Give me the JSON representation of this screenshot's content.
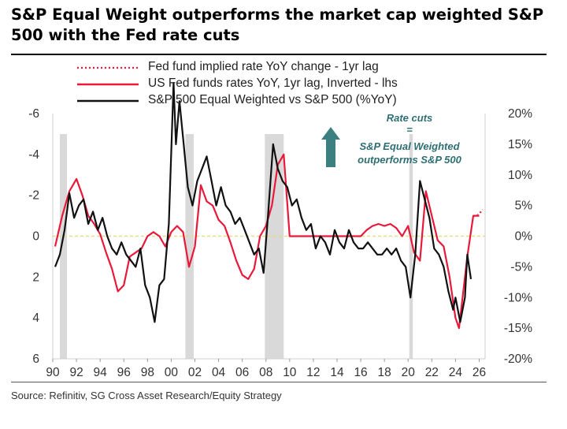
{
  "title": "S&P Equal Weight outperforms the market cap weighted S&P 500 with the Fed rate cuts",
  "source": "Source: Refinitiv, SG Cross Asset Research/Equity Strategy",
  "colors": {
    "red": "#e8193a",
    "black": "#111111",
    "recession": "#d9d9d9",
    "arrow": "#3c7f80",
    "annotation": "#2e6f73",
    "zero": "#e8d98a"
  },
  "chart_data": {
    "type": "line",
    "legend": [
      {
        "label": "Fed fund implied rate YoY change - 1yr lag",
        "style": "dotted",
        "color": "#e8193a"
      },
      {
        "label": "US Fed funds rates YoY, 1yr lag, Inverted - lhs",
        "style": "solid",
        "color": "#e8193a"
      },
      {
        "label": "S&P 500 Equal Weighted vs S&P 500 (%YoY)",
        "style": "solid",
        "color": "#111111"
      }
    ],
    "annotation": {
      "line1": "Rate cuts",
      "line2": "=",
      "line3": "S&P Equal Weighted",
      "line4": "outperforms S&P 500"
    },
    "x_ticks": [
      "90",
      "92",
      "94",
      "96",
      "98",
      "00",
      "02",
      "04",
      "06",
      "08",
      "10",
      "12",
      "14",
      "16",
      "18",
      "20",
      "22",
      "24",
      "26"
    ],
    "xlim": [
      1990,
      2026.5
    ],
    "left_axis": {
      "ticks": [
        "-6",
        "-4",
        "-2",
        "0",
        "2",
        "4",
        "6"
      ],
      "ylim": [
        -6,
        6
      ]
    },
    "right_axis": {
      "ticks": [
        "20%",
        "15%",
        "10%",
        "5%",
        "0%",
        "-5%",
        "-10%",
        "-15%",
        "-20%"
      ],
      "ylim": [
        -20,
        20
      ]
    },
    "recessions": [
      [
        1990.6,
        1991.2
      ],
      [
        2001.2,
        2001.9
      ],
      [
        2007.9,
        2009.5
      ],
      [
        2020.1,
        2020.4
      ]
    ],
    "series": [
      {
        "name": "S&P 500 Equal Weighted vs S&P 500 (%YoY)",
        "axis": "right",
        "x": [
          1990.2,
          1990.6,
          1991.0,
          1991.4,
          1991.8,
          1992.2,
          1992.6,
          1993.0,
          1993.4,
          1993.8,
          1994.2,
          1994.6,
          1995.0,
          1995.4,
          1995.8,
          1996.2,
          1996.6,
          1997.0,
          1997.4,
          1997.8,
          1998.2,
          1998.6,
          1999.0,
          1999.4,
          1999.8,
          2000.2,
          2000.4,
          2000.7,
          2001.0,
          2001.4,
          2001.8,
          2002.2,
          2002.6,
          2003.0,
          2003.4,
          2003.8,
          2004.2,
          2004.6,
          2005.0,
          2005.4,
          2005.8,
          2006.2,
          2006.6,
          2007.0,
          2007.4,
          2007.8,
          2008.2,
          2008.6,
          2009.0,
          2009.4,
          2009.8,
          2010.2,
          2010.6,
          2011.0,
          2011.4,
          2011.8,
          2012.2,
          2012.6,
          2013.0,
          2013.4,
          2013.8,
          2014.2,
          2014.6,
          2015.0,
          2015.4,
          2015.8,
          2016.2,
          2016.6,
          2017.0,
          2017.4,
          2017.8,
          2018.2,
          2018.6,
          2019.0,
          2019.4,
          2019.8,
          2020.2,
          2020.6,
          2021.0,
          2021.4,
          2021.8,
          2022.2,
          2022.6,
          2023.0,
          2023.4,
          2023.8,
          2024.0,
          2024.4,
          2024.8,
          2025.0,
          2025.3
        ],
        "values": [
          -5,
          -3,
          1,
          7,
          3,
          5,
          6,
          2,
          4,
          1,
          3,
          0,
          -2,
          -3,
          -1,
          -3,
          -4,
          -5,
          -2,
          -8,
          -10,
          -14,
          -8,
          -7,
          2,
          25,
          15,
          22,
          16,
          8,
          5,
          9,
          11,
          13,
          9,
          5,
          8,
          5,
          4,
          2,
          3,
          1,
          -1,
          -3,
          -2,
          -6,
          4,
          15,
          11,
          9,
          8,
          5,
          6,
          3,
          1,
          2,
          -2,
          0,
          -1,
          -3,
          1,
          -1,
          -2,
          1,
          -1,
          -2,
          -2,
          -1,
          -2,
          -3,
          -3,
          -2,
          -3,
          -2,
          -4,
          -5,
          -10,
          -3,
          9,
          6,
          3,
          -2,
          -3,
          -5,
          -9,
          -12,
          -10,
          -14,
          -10,
          -3,
          -7
        ]
      },
      {
        "name": "US Fed funds rates YoY, 1yr lag, Inverted - lhs",
        "axis": "left",
        "x": [
          1990.2,
          1990.8,
          1991.4,
          1992.0,
          1992.5,
          1993.0,
          1993.5,
          1994.0,
          1994.5,
          1995.0,
          1995.5,
          1996.0,
          1996.5,
          1997.0,
          1997.5,
          1998.0,
          1998.5,
          1999.0,
          1999.5,
          2000.0,
          2000.5,
          2001.0,
          2001.5,
          2002.0,
          2002.5,
          2003.0,
          2003.5,
          2004.0,
          2004.5,
          2005.0,
          2005.5,
          2006.0,
          2006.5,
          2007.0,
          2007.5,
          2008.0,
          2008.5,
          2009.0,
          2009.5,
          2010.0,
          2011.0,
          2012.0,
          2013.0,
          2014.0,
          2015.0,
          2016.0,
          2016.5,
          2017.0,
          2017.5,
          2018.0,
          2018.5,
          2019.0,
          2019.5,
          2020.0,
          2020.5,
          2021.0,
          2021.5,
          2022.0,
          2022.5,
          2023.0,
          2023.5,
          2024.0,
          2024.3,
          2024.6,
          2025.0,
          2025.5,
          2026.0
        ],
        "values": [
          0.5,
          -1,
          -2.2,
          -2.8,
          -2,
          -1,
          -0.6,
          -0.1,
          0.8,
          1.6,
          2.7,
          2.4,
          1,
          0.8,
          0.6,
          0,
          -0.2,
          0,
          0.5,
          -0.2,
          -0.5,
          -0.2,
          1.5,
          0.5,
          -2.5,
          -1.7,
          -1.5,
          -0.8,
          -0.5,
          0.3,
          1.2,
          1.9,
          2.1,
          1.6,
          0,
          -0.5,
          -1.5,
          -3.5,
          -4,
          0,
          0,
          0,
          0,
          0,
          0,
          0,
          -0.3,
          -0.5,
          -0.6,
          -0.5,
          -0.6,
          -0.4,
          0,
          -0.5,
          0.8,
          1.2,
          -2.2,
          -1,
          0.2,
          0.5,
          2,
          4,
          4.5,
          3,
          1,
          -1,
          -1
        ]
      },
      {
        "name": "Fed fund implied rate YoY change - 1yr lag",
        "axis": "left",
        "x": [
          2025.5,
          2025.8,
          2026.0,
          2026.3
        ],
        "values": [
          -1,
          -1,
          -1.1,
          -1.3
        ]
      }
    ]
  }
}
